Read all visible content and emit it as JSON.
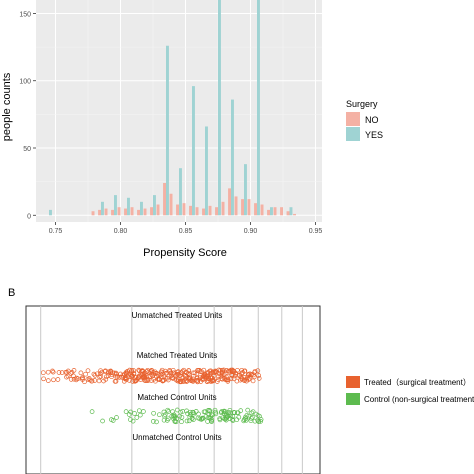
{
  "chart_data": [
    {
      "type": "bar",
      "panel": "",
      "xlabel": "Propensity Score",
      "ylabel": "people counts",
      "xlim": [
        0.735,
        0.955
      ],
      "ylim": [
        -5,
        160
      ],
      "xticks": [
        "0.75",
        "0.80",
        "0.85",
        "0.90",
        "0.95"
      ],
      "xtick_values": [
        0.75,
        0.8,
        0.85,
        0.9,
        0.95
      ],
      "yticks": [
        "0",
        "50",
        "100",
        "150"
      ],
      "ytick_values": [
        0,
        50,
        100,
        150
      ],
      "grid": true,
      "bin_width": 0.005,
      "legend": {
        "title": "Surgery",
        "position": "right"
      },
      "x": [
        0.745,
        0.78,
        0.785,
        0.79,
        0.795,
        0.8,
        0.805,
        0.81,
        0.815,
        0.82,
        0.825,
        0.83,
        0.835,
        0.84,
        0.845,
        0.85,
        0.855,
        0.86,
        0.865,
        0.87,
        0.875,
        0.88,
        0.885,
        0.89,
        0.895,
        0.9,
        0.905,
        0.91,
        0.915,
        0.92,
        0.925,
        0.93,
        0.935,
        0.94
      ],
      "series": [
        {
          "name": "NO",
          "color": "#f4b1a4",
          "values": [
            0,
            3,
            4,
            5,
            4,
            6,
            5,
            6,
            4,
            5,
            6,
            8,
            24,
            16,
            8,
            9,
            7,
            6,
            5,
            7,
            6,
            10,
            20,
            14,
            12,
            12,
            9,
            8,
            4,
            6,
            6,
            3,
            1,
            0
          ]
        },
        {
          "name": "YES",
          "color": "#9fd3d3",
          "values": [
            4,
            0,
            10,
            0,
            15,
            0,
            13,
            0,
            10,
            0,
            15,
            0,
            126,
            0,
            35,
            0,
            96,
            0,
            66,
            0,
            164,
            0,
            86,
            0,
            38,
            0,
            164,
            0,
            6,
            0,
            0,
            6,
            0,
            0
          ]
        }
      ]
    },
    {
      "type": "scatter",
      "panel": "B",
      "row_labels": [
        "Unmatched Treated Units",
        "Matched Treated Units",
        "Matched Control Units",
        "Unmatched Control Units"
      ],
      "guide_lines_x": [
        0.05,
        0.36,
        0.52,
        0.64,
        0.7,
        0.79,
        0.87,
        0.94
      ],
      "legend": {
        "position": "right"
      },
      "series": [
        {
          "name": "Treated（surgical treatment）",
          "color": "#e8622f",
          "density": [
            0.02,
            0.07,
            0.12,
            0.2,
            0.3,
            0.4,
            0.55,
            0.65,
            0.75,
            0.82,
            0.88,
            0.92,
            0.95,
            0.97,
            0.98,
            0.9,
            0.7,
            0.4
          ],
          "range": [
            0.0,
            0.86
          ]
        },
        {
          "name": "Control (non-surgical treatment)",
          "color": "#5dbb4f",
          "density": [
            0.02,
            0.05,
            0.1,
            0.2,
            0.3,
            0.45,
            0.55,
            0.65,
            0.75,
            0.85,
            0.9,
            0.7,
            0.4
          ],
          "range": [
            0.2,
            0.86
          ]
        }
      ]
    }
  ]
}
